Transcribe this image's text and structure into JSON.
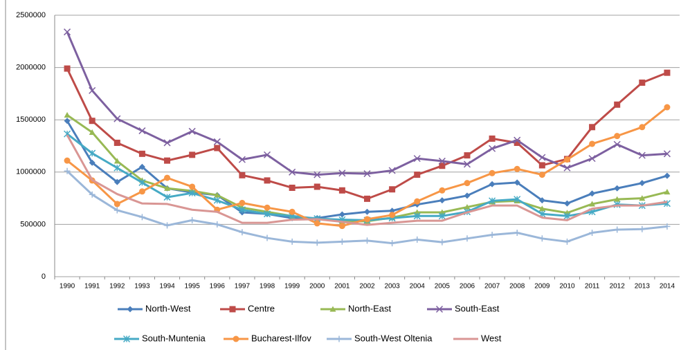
{
  "chart_data": {
    "type": "line",
    "categories": [
      "1990",
      "1991",
      "1992",
      "1993",
      "1994",
      "1995",
      "1996",
      "1997",
      "1998",
      "1999",
      "2000",
      "2001",
      "2002",
      "2003",
      "2004",
      "2005",
      "2006",
      "2007",
      "2008",
      "2009",
      "2010",
      "2011",
      "2012",
      "2013",
      "2014"
    ],
    "ylim": [
      0,
      2500000
    ],
    "yticks": [
      0,
      500000,
      1000000,
      1500000,
      2000000,
      2500000
    ],
    "grid": true,
    "legend": "bottom",
    "series": [
      {
        "name": "North-West",
        "color": "#4a7ebb",
        "marker": "diamond",
        "values": [
          1490000,
          1090000,
          905000,
          1050000,
          845000,
          805000,
          780000,
          615000,
          600000,
          560000,
          560000,
          595000,
          620000,
          630000,
          690000,
          730000,
          775000,
          885000,
          900000,
          730000,
          700000,
          795000,
          845000,
          895000,
          965000
        ]
      },
      {
        "name": "Centre",
        "color": "#be4b48",
        "marker": "square",
        "values": [
          1990000,
          1490000,
          1280000,
          1175000,
          1110000,
          1165000,
          1230000,
          970000,
          920000,
          850000,
          860000,
          825000,
          745000,
          835000,
          975000,
          1060000,
          1160000,
          1320000,
          1280000,
          1065000,
          1125000,
          1430000,
          1645000,
          1855000,
          1950000
        ]
      },
      {
        "name": "North-East",
        "color": "#98b954",
        "marker": "triangle",
        "values": [
          1545000,
          1380000,
          1105000,
          920000,
          845000,
          820000,
          780000,
          660000,
          620000,
          580000,
          550000,
          530000,
          530000,
          565000,
          615000,
          615000,
          665000,
          715000,
          725000,
          650000,
          610000,
          695000,
          740000,
          750000,
          810000
        ]
      },
      {
        "name": "South-East",
        "color": "#7d60a0",
        "marker": "x",
        "values": [
          2340000,
          1780000,
          1510000,
          1395000,
          1280000,
          1390000,
          1290000,
          1120000,
          1165000,
          1000000,
          975000,
          990000,
          985000,
          1015000,
          1130000,
          1105000,
          1075000,
          1225000,
          1305000,
          1140000,
          1040000,
          1130000,
          1265000,
          1160000,
          1175000
        ]
      },
      {
        "name": "South-Muntenia",
        "color": "#46aac5",
        "marker": "star",
        "values": [
          1365000,
          1180000,
          1040000,
          900000,
          760000,
          800000,
          730000,
          640000,
          600000,
          580000,
          555000,
          545000,
          540000,
          560000,
          580000,
          580000,
          620000,
          725000,
          740000,
          600000,
          580000,
          620000,
          690000,
          680000,
          700000
        ]
      },
      {
        "name": "Bucharest-Ilfov",
        "color": "#f79646",
        "marker": "circle",
        "values": [
          1110000,
          920000,
          695000,
          815000,
          945000,
          860000,
          640000,
          705000,
          660000,
          620000,
          510000,
          485000,
          550000,
          590000,
          720000,
          825000,
          895000,
          990000,
          1030000,
          975000,
          1120000,
          1270000,
          1345000,
          1430000,
          1620000
        ]
      },
      {
        "name": "South-West Oltenia",
        "color": "#9bb7d9",
        "marker": "plus",
        "values": [
          1010000,
          785000,
          635000,
          570000,
          490000,
          540000,
          500000,
          425000,
          370000,
          335000,
          325000,
          335000,
          345000,
          320000,
          355000,
          330000,
          365000,
          400000,
          420000,
          365000,
          335000,
          420000,
          450000,
          455000,
          480000
        ]
      },
      {
        "name": "West",
        "color": "#d99694",
        "marker": "none",
        "values": [
          1355000,
          925000,
          790000,
          700000,
          695000,
          640000,
          620000,
          515000,
          515000,
          545000,
          550000,
          525000,
          495000,
          515000,
          535000,
          535000,
          615000,
          680000,
          680000,
          565000,
          540000,
          650000,
          680000,
          680000,
          715000
        ]
      }
    ]
  }
}
